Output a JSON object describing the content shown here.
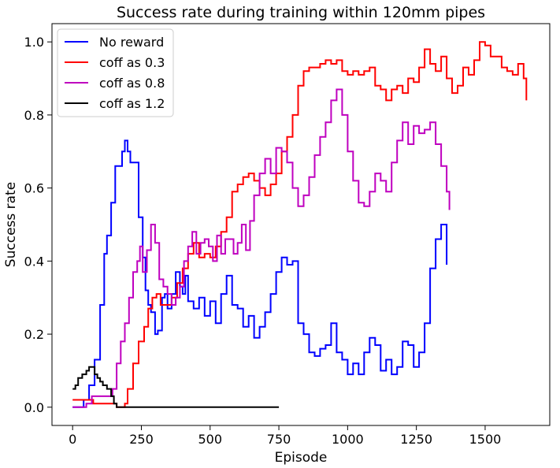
{
  "chart_data": {
    "type": "line",
    "title": "Success rate during training within 120mm pipes",
    "xlabel": "Episode",
    "ylabel": "Success rate",
    "xlim": [
      -75,
      1735
    ],
    "ylim": [
      -0.05,
      1.05
    ],
    "xticks": [
      0,
      250,
      500,
      750,
      1000,
      1250,
      1500
    ],
    "xtick_labels": [
      "0",
      "250",
      "500",
      "750",
      "1000",
      "1250",
      "1500"
    ],
    "yticks": [
      0.0,
      0.2,
      0.4,
      0.6,
      0.8,
      1.0
    ],
    "ytick_labels": [
      "0.0",
      "0.2",
      "0.4",
      "0.6",
      "0.8",
      "1.0"
    ],
    "grid": false,
    "legend_position": "top-left",
    "series": [
      {
        "name": "No reward",
        "color": "#0000ff",
        "x": [
          0,
          20,
          40,
          60,
          80,
          100,
          115,
          125,
          140,
          155,
          170,
          180,
          190,
          200,
          210,
          225,
          240,
          255,
          265,
          275,
          285,
          300,
          310,
          325,
          335,
          345,
          360,
          375,
          390,
          400,
          410,
          420,
          440,
          460,
          480,
          500,
          520,
          540,
          560,
          580,
          600,
          620,
          640,
          660,
          680,
          700,
          720,
          740,
          760,
          780,
          800,
          820,
          840,
          860,
          880,
          900,
          920,
          940,
          960,
          980,
          1000,
          1020,
          1040,
          1060,
          1080,
          1100,
          1120,
          1140,
          1160,
          1180,
          1200,
          1220,
          1240,
          1260,
          1280,
          1300,
          1320,
          1340,
          1360
        ],
        "values": [
          0.0,
          0.0,
          0.02,
          0.06,
          0.13,
          0.28,
          0.42,
          0.47,
          0.56,
          0.66,
          0.66,
          0.7,
          0.73,
          0.7,
          0.67,
          0.67,
          0.52,
          0.41,
          0.32,
          0.28,
          0.26,
          0.2,
          0.21,
          0.3,
          0.31,
          0.27,
          0.31,
          0.37,
          0.33,
          0.31,
          0.36,
          0.29,
          0.27,
          0.3,
          0.25,
          0.29,
          0.23,
          0.31,
          0.36,
          0.28,
          0.27,
          0.22,
          0.25,
          0.19,
          0.22,
          0.26,
          0.31,
          0.37,
          0.41,
          0.39,
          0.4,
          0.23,
          0.2,
          0.15,
          0.14,
          0.16,
          0.17,
          0.23,
          0.15,
          0.13,
          0.09,
          0.12,
          0.09,
          0.15,
          0.19,
          0.17,
          0.1,
          0.13,
          0.09,
          0.11,
          0.18,
          0.17,
          0.11,
          0.15,
          0.23,
          0.38,
          0.46,
          0.5,
          0.39
        ]
      },
      {
        "name": "coff as 0.3",
        "color": "#ff0000",
        "x": [
          0,
          60,
          75,
          100,
          120,
          140,
          160,
          175,
          190,
          200,
          220,
          240,
          260,
          275,
          290,
          305,
          320,
          340,
          360,
          380,
          400,
          420,
          440,
          460,
          480,
          500,
          520,
          540,
          560,
          580,
          600,
          620,
          640,
          660,
          680,
          700,
          720,
          740,
          760,
          780,
          800,
          820,
          840,
          860,
          880,
          900,
          920,
          940,
          960,
          980,
          1000,
          1020,
          1040,
          1060,
          1080,
          1100,
          1120,
          1140,
          1160,
          1180,
          1200,
          1220,
          1240,
          1260,
          1280,
          1300,
          1320,
          1340,
          1360,
          1380,
          1400,
          1420,
          1440,
          1460,
          1480,
          1500,
          1520,
          1540,
          1560,
          1580,
          1600,
          1620,
          1640,
          1650
        ],
        "values": [
          0.02,
          0.02,
          0.01,
          0.01,
          0.01,
          0.01,
          0.0,
          0.0,
          0.01,
          0.05,
          0.12,
          0.18,
          0.22,
          0.27,
          0.3,
          0.31,
          0.28,
          0.28,
          0.3,
          0.34,
          0.38,
          0.42,
          0.45,
          0.41,
          0.42,
          0.41,
          0.44,
          0.48,
          0.52,
          0.59,
          0.61,
          0.63,
          0.64,
          0.62,
          0.6,
          0.58,
          0.61,
          0.64,
          0.7,
          0.74,
          0.8,
          0.88,
          0.92,
          0.93,
          0.93,
          0.94,
          0.95,
          0.94,
          0.95,
          0.92,
          0.91,
          0.92,
          0.91,
          0.92,
          0.93,
          0.88,
          0.87,
          0.84,
          0.87,
          0.88,
          0.86,
          0.9,
          0.89,
          0.93,
          0.98,
          0.94,
          0.92,
          0.96,
          0.9,
          0.86,
          0.88,
          0.93,
          0.91,
          0.95,
          1.0,
          0.99,
          0.96,
          0.96,
          0.93,
          0.92,
          0.91,
          0.94,
          0.9,
          0.84
        ]
      },
      {
        "name": "coff as 0.8",
        "color": "#bf00bf",
        "x": [
          0,
          30,
          50,
          70,
          90,
          110,
          130,
          145,
          160,
          175,
          190,
          205,
          220,
          235,
          245,
          255,
          270,
          285,
          300,
          315,
          330,
          345,
          360,
          375,
          390,
          405,
          420,
          435,
          450,
          465,
          480,
          495,
          510,
          525,
          540,
          555,
          570,
          585,
          600,
          615,
          630,
          645,
          660,
          680,
          700,
          720,
          740,
          760,
          780,
          800,
          820,
          840,
          860,
          880,
          900,
          920,
          940,
          960,
          980,
          1000,
          1020,
          1040,
          1060,
          1080,
          1100,
          1120,
          1140,
          1160,
          1180,
          1200,
          1220,
          1240,
          1260,
          1280,
          1300,
          1320,
          1340,
          1360,
          1370
        ],
        "values": [
          0.0,
          0.0,
          0.01,
          0.03,
          0.03,
          0.03,
          0.03,
          0.05,
          0.12,
          0.18,
          0.23,
          0.3,
          0.37,
          0.4,
          0.44,
          0.37,
          0.43,
          0.5,
          0.45,
          0.35,
          0.33,
          0.31,
          0.28,
          0.3,
          0.33,
          0.4,
          0.44,
          0.48,
          0.42,
          0.45,
          0.46,
          0.44,
          0.4,
          0.47,
          0.42,
          0.46,
          0.46,
          0.42,
          0.45,
          0.5,
          0.43,
          0.51,
          0.58,
          0.64,
          0.68,
          0.64,
          0.71,
          0.7,
          0.67,
          0.6,
          0.55,
          0.58,
          0.63,
          0.69,
          0.74,
          0.78,
          0.84,
          0.87,
          0.8,
          0.7,
          0.62,
          0.56,
          0.55,
          0.59,
          0.64,
          0.62,
          0.59,
          0.67,
          0.73,
          0.78,
          0.72,
          0.77,
          0.75,
          0.76,
          0.78,
          0.72,
          0.66,
          0.59,
          0.54
        ]
      },
      {
        "name": "coff as 1.2",
        "color": "#000000",
        "x": [
          0,
          10,
          20,
          35,
          50,
          60,
          70,
          80,
          90,
          100,
          110,
          125,
          140,
          150,
          160,
          200,
          300,
          400,
          500,
          600,
          700,
          750
        ],
        "values": [
          0.05,
          0.06,
          0.08,
          0.09,
          0.1,
          0.11,
          0.11,
          0.09,
          0.08,
          0.07,
          0.06,
          0.05,
          0.03,
          0.01,
          0.0,
          0.0,
          0.0,
          0.0,
          0.0,
          0.0,
          0.0,
          0.0
        ]
      }
    ]
  }
}
